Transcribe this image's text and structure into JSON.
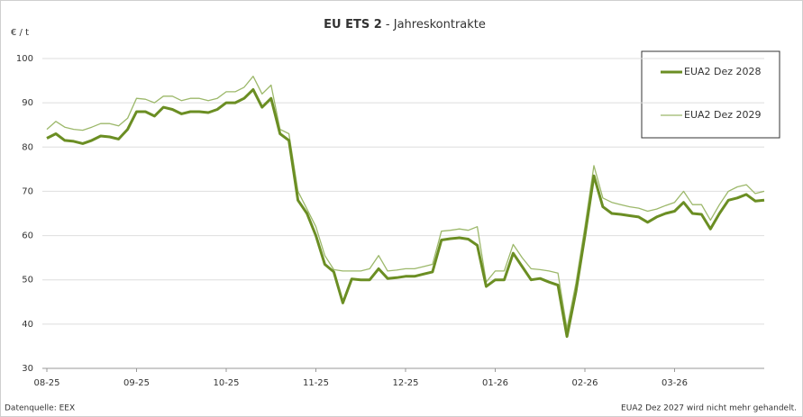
{
  "chart_data": {
    "type": "line",
    "title": "EU ETS 2",
    "subtitle": "- Jahreskontrakte",
    "y_label": "€ / t",
    "source": "Datenquelle: EEX",
    "note": "EUA2 Dez 2027 wird nicht mehr gehandelt.",
    "categories": [
      "08-25",
      null,
      null,
      null,
      null,
      null,
      null,
      null,
      null,
      null,
      "09-25",
      null,
      null,
      null,
      null,
      null,
      null,
      null,
      null,
      null,
      "10-25",
      null,
      null,
      null,
      null,
      null,
      null,
      null,
      null,
      null,
      "11-25",
      null,
      null,
      null,
      null,
      null,
      null,
      null,
      null,
      null,
      "12-25",
      null,
      null,
      null,
      null,
      null,
      null,
      null,
      null,
      null,
      "01-26",
      null,
      null,
      null,
      null,
      null,
      null,
      null,
      null,
      null,
      "02-26",
      null,
      null,
      null,
      null,
      null,
      null,
      null,
      null,
      null,
      "03-26",
      null,
      null,
      null,
      null,
      null,
      null,
      null,
      null,
      null,
      null
    ],
    "series": [
      {
        "name": "EUA2 Dez 2028",
        "color": "#6b8e23",
        "values": [
          82,
          83,
          81.5,
          81.3,
          80.8,
          81.5,
          82.5,
          82.3,
          81.8,
          84,
          88,
          88,
          87,
          89,
          88.5,
          87.5,
          88,
          88,
          87.8,
          88.5,
          90,
          90,
          91,
          93,
          89,
          91,
          83,
          81.5,
          68,
          65,
          60,
          53.5,
          51.8,
          44.8,
          50.2,
          50,
          50,
          52.5,
          50.3,
          50.5,
          50.8,
          50.8,
          51.3,
          51.8,
          59,
          59.3,
          59.5,
          59.2,
          57.8,
          48.5,
          50,
          50,
          56,
          53,
          50,
          50.3,
          49.5,
          48.8,
          37.2,
          47.3,
          60,
          73.5,
          66.5,
          65,
          64.8,
          64.5,
          64.2,
          63,
          64.2,
          65,
          65.5,
          67.5,
          65,
          64.8,
          61.5,
          65,
          68,
          68.5,
          69.3,
          67.8,
          68
        ]
      },
      {
        "name": "EUA2 Dez 2029",
        "color": "#9cb86a",
        "values": [
          84,
          85.8,
          84.5,
          84,
          83.8,
          84.5,
          85.3,
          85.3,
          84.8,
          86.5,
          91,
          90.8,
          90,
          91.5,
          91.5,
          90.5,
          91,
          91,
          90.5,
          91,
          92.5,
          92.5,
          93.5,
          96,
          92,
          94,
          84,
          83,
          70,
          66,
          62,
          55.5,
          52.3,
          52,
          52,
          52,
          52.5,
          55.5,
          52,
          52.2,
          52.5,
          52.5,
          53,
          53.5,
          61,
          61.2,
          61.5,
          61.2,
          62,
          49.5,
          52,
          52,
          58,
          55,
          52.5,
          52.3,
          52,
          51.5,
          39,
          49.2,
          62,
          75.8,
          68.5,
          67.5,
          67,
          66.5,
          66.2,
          65.5,
          66,
          66.8,
          67.5,
          70,
          67,
          67,
          63.5,
          67,
          70,
          71,
          71.5,
          69.5,
          70
        ]
      }
    ],
    "ylim": [
      30,
      100
    ],
    "yticks": [
      30,
      40,
      50,
      60,
      70,
      80,
      90,
      100
    ],
    "grid": true,
    "legend": "top-right"
  }
}
